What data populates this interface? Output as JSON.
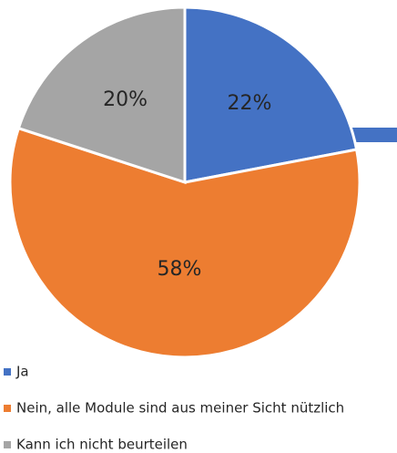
{
  "chart_data": {
    "type": "pie",
    "categories": [
      "Ja",
      "Nein, alle Module sind aus meiner Sicht nützlich",
      "Kann ich nicht beurteilen"
    ],
    "values": [
      22,
      58,
      20
    ],
    "value_labels": [
      "22%",
      "58%",
      "20%"
    ],
    "colors": [
      "#4472c4",
      "#ed7d31",
      "#a5a5a5"
    ],
    "legend": "bottom"
  }
}
